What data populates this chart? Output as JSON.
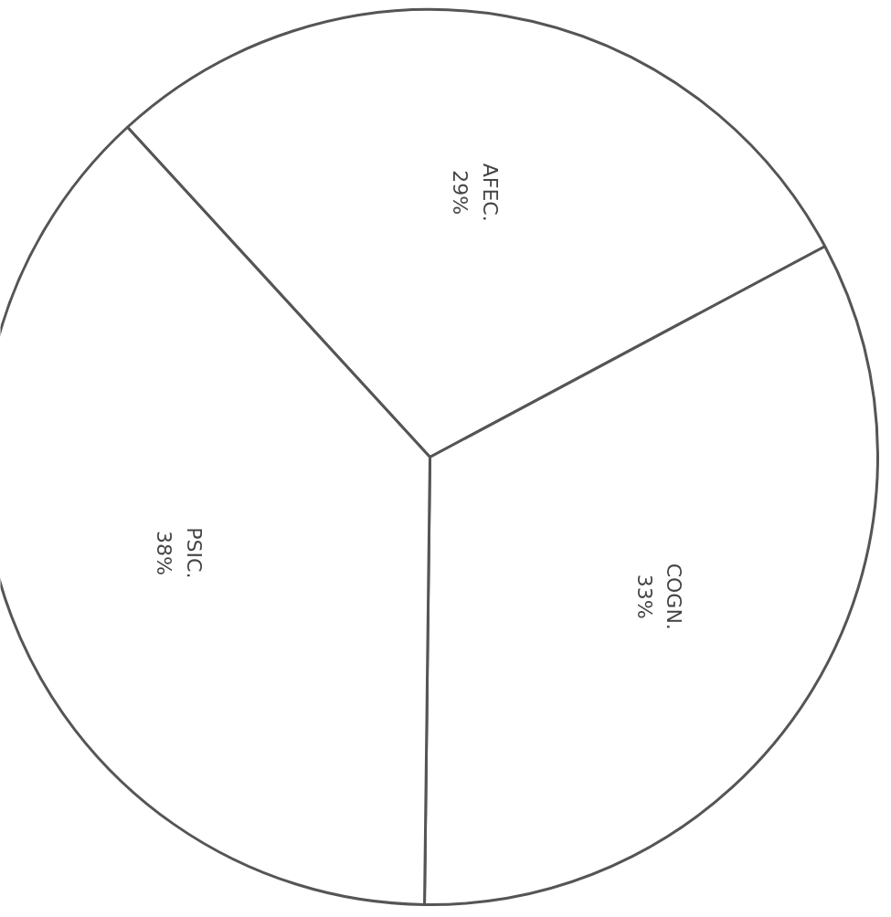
{
  "chart_data": {
    "type": "pie",
    "categories": [
      "AFEC.",
      "COGN.",
      "PSIC."
    ],
    "values": [
      29,
      33,
      38
    ],
    "value_labels": [
      "29%",
      "33%",
      "38%"
    ],
    "colors": [
      "#ffffff",
      "#ffffff",
      "#ffffff"
    ]
  }
}
